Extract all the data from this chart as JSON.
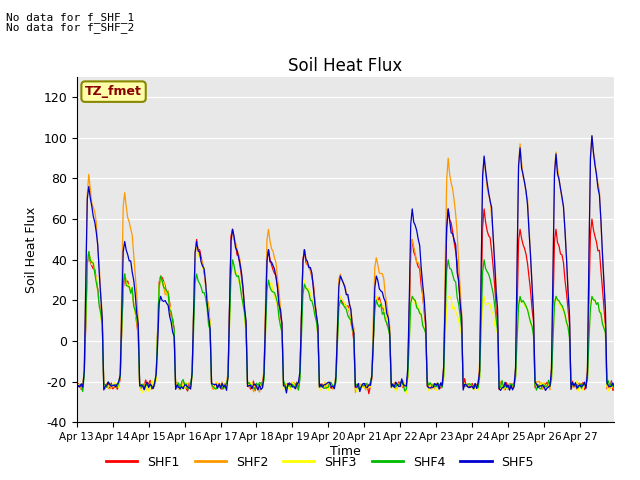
{
  "title": "Soil Heat Flux",
  "ylabel": "Soil Heat Flux",
  "xlabel": "Time",
  "annotations": [
    "No data for f_SHF_1",
    "No data for f_SHF_2"
  ],
  "legend_label": "TZ_fmet",
  "series_labels": [
    "SHF1",
    "SHF2",
    "SHF3",
    "SHF4",
    "SHF5"
  ],
  "series_colors": [
    "#ff0000",
    "#ff9900",
    "#ffff00",
    "#00bb00",
    "#0000cc"
  ],
  "ylim": [
    -40,
    130
  ],
  "yticks": [
    -40,
    -20,
    0,
    20,
    40,
    60,
    80,
    100,
    120
  ],
  "plot_bg_color": "#e8e8e8",
  "n_days": 15,
  "start_day": 13,
  "n_per_day": 24,
  "night_val": -22,
  "day_peaks": [
    [
      44,
      82,
      44,
      44,
      76
    ],
    [
      33,
      73,
      33,
      33,
      49
    ],
    [
      32,
      32,
      32,
      32,
      22
    ],
    [
      50,
      49,
      49,
      33,
      49
    ],
    [
      55,
      55,
      40,
      40,
      55
    ],
    [
      45,
      55,
      30,
      30,
      45
    ],
    [
      45,
      45,
      30,
      28,
      45
    ],
    [
      22,
      33,
      22,
      20,
      32
    ],
    [
      22,
      41,
      22,
      20,
      32
    ],
    [
      50,
      50,
      22,
      22,
      65
    ],
    [
      65,
      90,
      22,
      40,
      65
    ],
    [
      65,
      90,
      22,
      40,
      91
    ],
    [
      55,
      97,
      22,
      22,
      95
    ],
    [
      55,
      93,
      22,
      22,
      92
    ],
    [
      60,
      101,
      22,
      22,
      101
    ]
  ]
}
